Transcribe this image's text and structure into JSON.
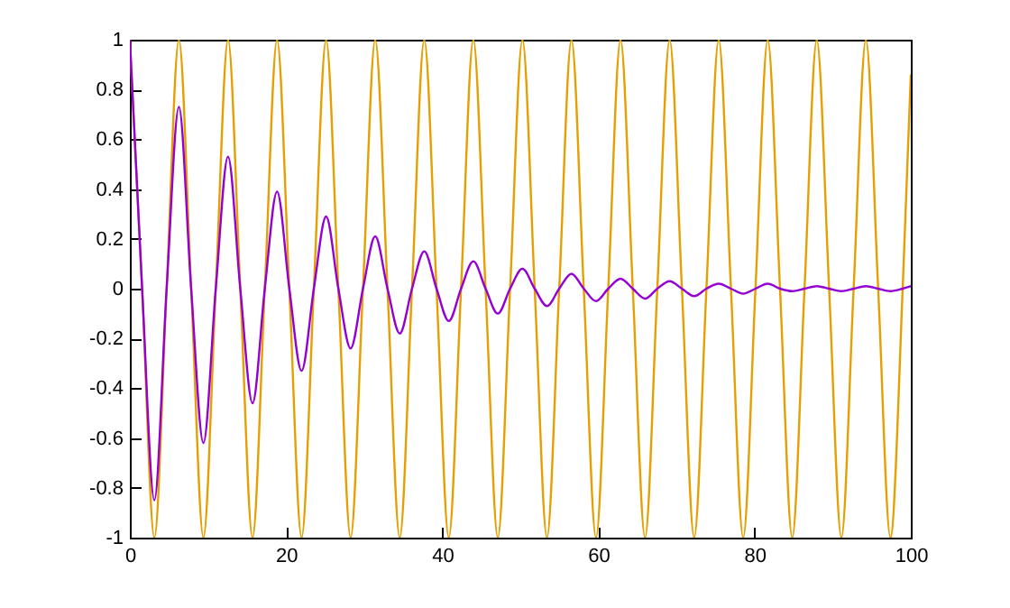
{
  "chart_data": {
    "type": "line",
    "x": [
      0,
      1.57,
      3.14,
      4.71,
      6.28,
      7.85,
      9.42,
      11,
      12.57,
      14.14,
      15.71,
      17.28,
      18.85,
      20.42,
      21.99,
      23.56,
      25.13,
      26.7,
      28.27,
      29.85,
      31.42,
      32.99,
      34.56,
      36.13,
      37.7,
      39.27,
      40.84,
      42.41,
      43.98,
      45.55,
      47.12,
      48.69,
      50.27,
      51.84,
      53.41,
      54.98,
      56.55,
      58.12,
      59.69,
      61.26,
      62.83,
      64.4,
      65.97,
      67.54,
      69.12,
      70.69,
      72.26,
      73.83,
      75.4,
      76.97,
      78.54,
      80.11,
      81.68,
      83.25,
      84.82,
      86.39,
      87.96,
      89.54,
      91.11,
      92.68,
      94.25,
      95.82,
      97.39,
      98.96,
      100
    ],
    "series": [
      {
        "color": "#e69f00",
        "values": [
          1,
          0,
          -1,
          0,
          1,
          0,
          -1,
          0,
          1,
          0,
          -1,
          0,
          1,
          0,
          -1,
          0,
          1,
          0,
          -1,
          0,
          1,
          0,
          -1,
          0,
          1,
          0,
          -1,
          0,
          1,
          0,
          -1,
          0,
          1,
          0,
          -1,
          0,
          1,
          0,
          -1,
          0,
          1,
          0,
          -1,
          0,
          1,
          0,
          -1,
          0,
          1,
          0,
          -1,
          0,
          1,
          0,
          -1,
          0,
          1,
          0,
          -1,
          0,
          1,
          0,
          -1,
          0,
          0.86
        ]
      },
      {
        "color": "#9400d3",
        "values": [
          1,
          0,
          -0.85,
          0,
          0.73,
          0,
          -0.62,
          0,
          0.53,
          0,
          -0.46,
          0,
          0.39,
          0,
          -0.33,
          0,
          0.29,
          0,
          -0.24,
          0,
          0.21,
          0,
          -0.18,
          0,
          0.15,
          0,
          -0.13,
          0,
          0.11,
          0,
          -0.1,
          0,
          0.08,
          0,
          -0.07,
          0,
          0.06,
          0,
          -0.05,
          0,
          0.04,
          0,
          -0.04,
          0,
          0.03,
          0,
          -0.03,
          0,
          0.02,
          0,
          -0.02,
          0,
          0.02,
          0,
          -0.01,
          0,
          0.01,
          0,
          -0.01,
          0,
          0.01,
          0,
          -0.01,
          0,
          0.01
        ]
      }
    ],
    "xlim": [
      0,
      100
    ],
    "xticks": [
      0,
      20,
      40,
      60,
      80,
      100
    ],
    "ylim": [
      -1,
      1
    ],
    "yticks": [
      -1,
      -0.8,
      -0.6,
      -0.4,
      -0.2,
      0,
      0.2,
      0.4,
      0.6,
      0.8,
      1
    ],
    "grid": false
  }
}
